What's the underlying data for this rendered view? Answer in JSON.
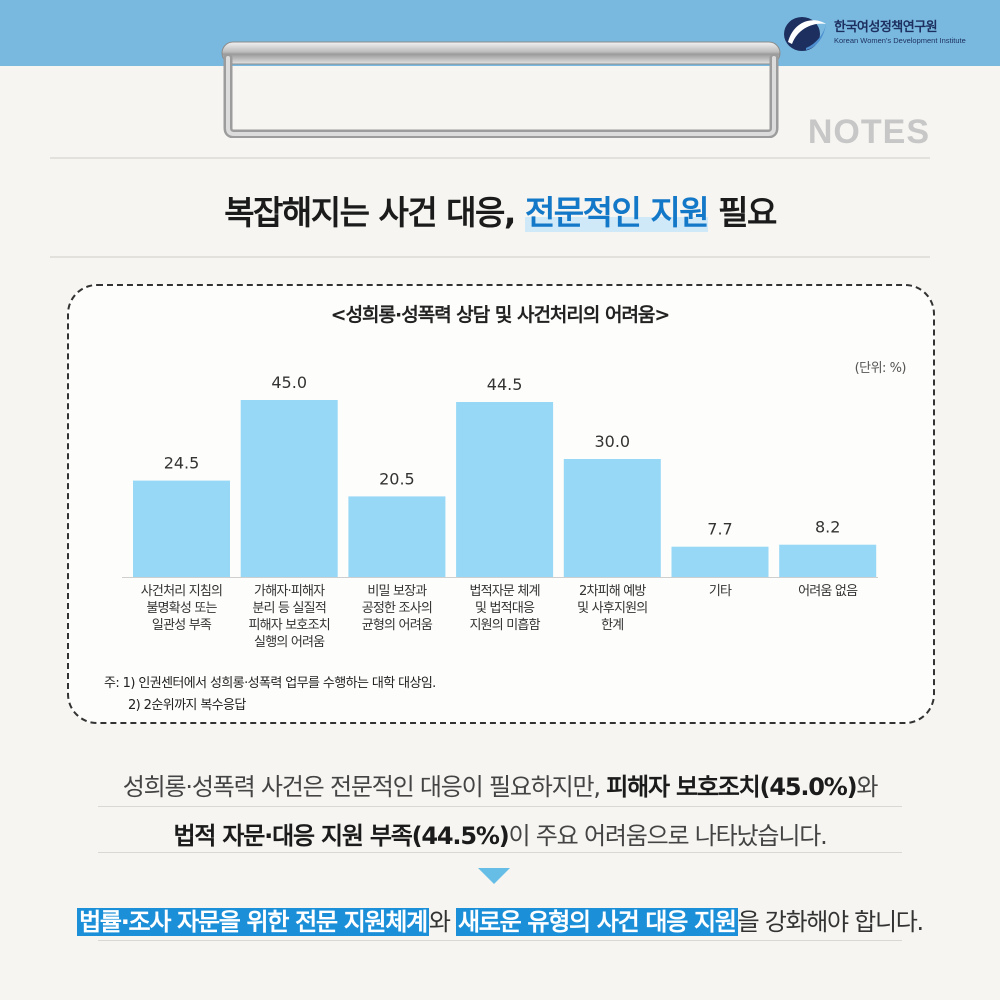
{
  "colors": {
    "band": "#79b9e0",
    "bar": "#97d8f6",
    "accent": "#1478c8",
    "highlight": "#1b8fd8"
  },
  "logo": {
    "ko": "한국여성정책연구원",
    "en": "Korean Women's Development Institute",
    "icon": "kwdi-logo-icon"
  },
  "notes_label": "NOTES",
  "headline": {
    "pre": "복잡해지는 사건 대응, ",
    "highlight": "전문적인 지원",
    "post": " 필요"
  },
  "chart_data": {
    "type": "bar",
    "title": "<성희롱·성폭력 상담 및 사건처리의 어려움>",
    "unit": "(단위: %)",
    "ylim": [
      0,
      50
    ],
    "grid": false,
    "categories": [
      [
        "사건처리 지침의",
        "불명확성 또는",
        "일관성 부족"
      ],
      [
        "가해자·피해자",
        "분리 등 실질적",
        "피해자 보호조치",
        "실행의 어려움"
      ],
      [
        "비밀 보장과",
        "공정한 조사의",
        "균형의 어려움"
      ],
      [
        "법적자문 체계",
        "및 법적대응",
        "지원의 미흡함"
      ],
      [
        "2차피해 예방",
        "및 사후지원의",
        "한계"
      ],
      [
        "기타"
      ],
      [
        "어려움 없음"
      ]
    ],
    "values": [
      24.5,
      45.0,
      20.5,
      44.5,
      30.0,
      7.7,
      8.2
    ],
    "value_labels": [
      "24.5",
      "45.0",
      "20.5",
      "44.5",
      "30.0",
      "7.7",
      "8.2"
    ],
    "notes": [
      "주: 1) 인권센터에서 성희롱·성폭력 업무를 수행하는 대학 대상임.",
      "2) 2순위까지 복수응답"
    ]
  },
  "summary": {
    "line1_pre": "성희롱·성폭력 사건은 전문적인 대응이 필요하지만, ",
    "line1_bold": "피해자 보호조치(45.0%)",
    "line1_post": "와",
    "line2_bold": "법적 자문·대응 지원 부족(44.5%)",
    "line2_post": "이 주요 어려움으로 나타났습니다."
  },
  "conclusion": {
    "hl1": "법률·조사 자문을 위한 전문 지원체계",
    "mid": "와 ",
    "hl2": "새로운 유형의 사건 대응 지원",
    "post": "을 강화해야 합니다."
  }
}
